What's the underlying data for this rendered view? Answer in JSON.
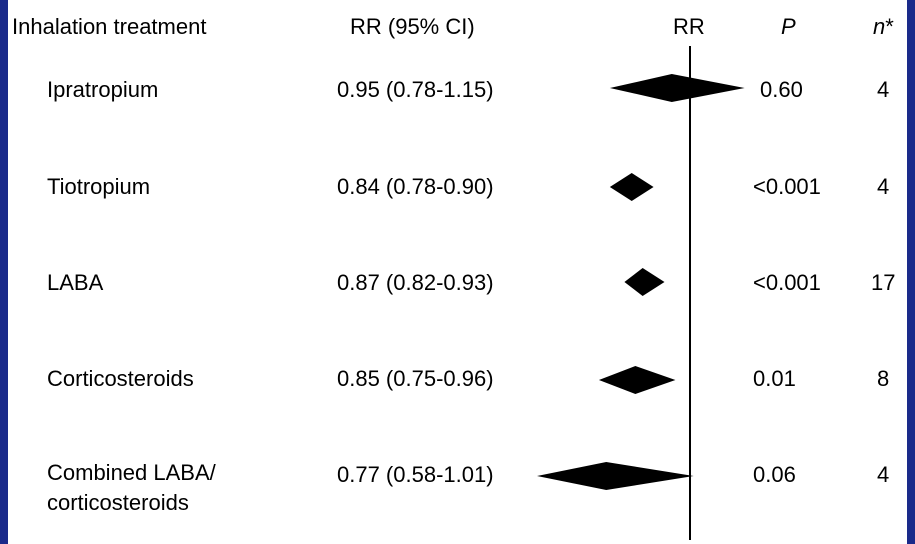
{
  "colors": {
    "frame": "#1a2a8a",
    "background": "#ffffff",
    "marker": "#000000"
  },
  "header": {
    "treatment": "Inhalation treatment",
    "rr_ci": "RR (95% CI)",
    "rr": "RR",
    "p": "P",
    "n": "n",
    "n_suffix": "*"
  },
  "chart_data": {
    "type": "forest",
    "reference_line": 1.0,
    "rows": [
      {
        "treatment": "Ipratropium",
        "rr_text": "0.95 (0.78-1.15)",
        "rr": 0.95,
        "ci_low": 0.78,
        "ci_high": 1.15,
        "p": "0.60",
        "n": "4"
      },
      {
        "treatment": "Tiotropium",
        "rr_text": "0.84 (0.78-0.90)",
        "rr": 0.84,
        "ci_low": 0.78,
        "ci_high": 0.9,
        "p": "<0.001",
        "n": "4"
      },
      {
        "treatment": "LABA",
        "rr_text": "0.87 (0.82-0.93)",
        "rr": 0.87,
        "ci_low": 0.82,
        "ci_high": 0.93,
        "p": "<0.001",
        "n": "17"
      },
      {
        "treatment": "Corticosteroids",
        "rr_text": "0.85 (0.75-0.96)",
        "rr": 0.85,
        "ci_low": 0.75,
        "ci_high": 0.96,
        "p": "0.01",
        "n": "8"
      },
      {
        "treatment": "Combined LABA/ corticosteroids",
        "rr_text": "0.77 (0.58-1.01)",
        "rr": 0.77,
        "ci_low": 0.58,
        "ci_high": 1.01,
        "p": "0.06",
        "n": "4"
      }
    ]
  }
}
